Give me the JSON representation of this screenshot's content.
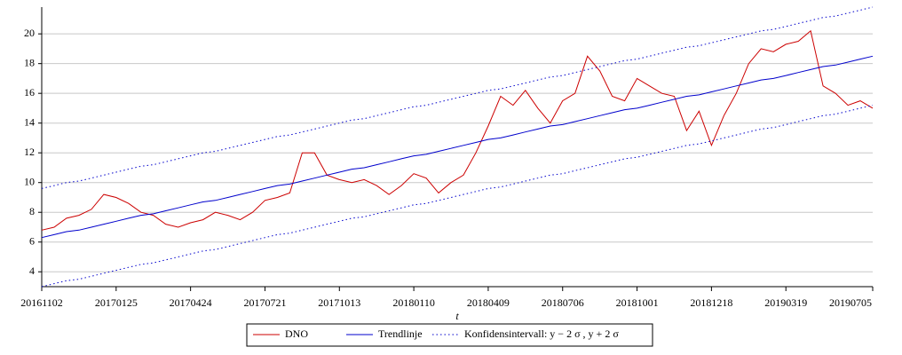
{
  "chart_data": {
    "type": "line",
    "x_label": "t",
    "categories": [
      "20161102",
      null,
      null,
      null,
      null,
      null,
      "20170125",
      null,
      null,
      null,
      null,
      null,
      "20170424",
      null,
      null,
      null,
      null,
      null,
      "20170721",
      null,
      null,
      null,
      null,
      null,
      "20171013",
      null,
      null,
      null,
      null,
      null,
      "20180110",
      null,
      null,
      null,
      null,
      null,
      "20180409",
      null,
      null,
      null,
      null,
      null,
      "20180706",
      null,
      null,
      null,
      null,
      null,
      "20181001",
      null,
      null,
      null,
      null,
      null,
      "20181218",
      null,
      null,
      null,
      null,
      null,
      "20190319",
      null,
      null,
      null,
      null,
      null,
      null,
      "20190705"
    ],
    "series": [
      {
        "name": "DNO",
        "color": "#cc0000",
        "style": "solid",
        "values": [
          6.8,
          7.0,
          7.6,
          7.8,
          8.2,
          9.2,
          9.0,
          8.6,
          8.0,
          7.8,
          7.2,
          7.0,
          7.3,
          7.5,
          8.0,
          7.8,
          7.5,
          8.0,
          8.8,
          9.0,
          9.3,
          12.0,
          12.0,
          10.5,
          10.2,
          10.0,
          10.2,
          9.8,
          9.2,
          9.8,
          10.6,
          10.3,
          9.3,
          10.0,
          10.5,
          12.0,
          13.8,
          15.8,
          15.2,
          16.2,
          15.0,
          14.0,
          15.5,
          16.0,
          18.5,
          17.5,
          15.8,
          15.5,
          17.0,
          16.5,
          16.0,
          15.8,
          13.5,
          14.8,
          12.5,
          14.5,
          16.0,
          18.0,
          19.0,
          18.8,
          19.3,
          19.5,
          20.2,
          16.5,
          16.0,
          15.2,
          15.5,
          15.0
        ]
      },
      {
        "name": "Trendlinje",
        "color": "#0000cc",
        "style": "solid",
        "values": [
          6.3,
          6.5,
          6.7,
          6.8,
          7.0,
          7.2,
          7.4,
          7.6,
          7.8,
          7.9,
          8.1,
          8.3,
          8.5,
          8.7,
          8.8,
          9.0,
          9.2,
          9.4,
          9.6,
          9.8,
          9.9,
          10.1,
          10.3,
          10.5,
          10.7,
          10.9,
          11.0,
          11.2,
          11.4,
          11.6,
          11.8,
          11.9,
          12.1,
          12.3,
          12.5,
          12.7,
          12.9,
          13.0,
          13.2,
          13.4,
          13.6,
          13.8,
          13.9,
          14.1,
          14.3,
          14.5,
          14.7,
          14.9,
          15.0,
          15.2,
          15.4,
          15.6,
          15.8,
          15.9,
          16.1,
          16.3,
          16.5,
          16.7,
          16.9,
          17.0,
          17.2,
          17.4,
          17.6,
          17.8,
          17.9,
          18.1,
          18.3,
          18.5
        ]
      },
      {
        "name": "Konfidensintervall:  y − 2 σ , y + 2 σ",
        "color": "#0000cc",
        "style": "dotted",
        "upper": [
          9.6,
          9.8,
          10.0,
          10.1,
          10.3,
          10.5,
          10.7,
          10.9,
          11.1,
          11.2,
          11.4,
          11.6,
          11.8,
          12.0,
          12.1,
          12.3,
          12.5,
          12.7,
          12.9,
          13.1,
          13.2,
          13.4,
          13.6,
          13.8,
          14.0,
          14.2,
          14.3,
          14.5,
          14.7,
          14.9,
          15.1,
          15.2,
          15.4,
          15.6,
          15.8,
          16.0,
          16.2,
          16.3,
          16.5,
          16.7,
          16.9,
          17.1,
          17.2,
          17.4,
          17.6,
          17.8,
          18.0,
          18.2,
          18.3,
          18.5,
          18.7,
          18.9,
          19.1,
          19.2,
          19.4,
          19.6,
          19.8,
          20.0,
          20.2,
          20.3,
          20.5,
          20.7,
          20.9,
          21.1,
          21.2,
          21.4,
          21.6,
          21.8
        ],
        "lower": [
          3.0,
          3.2,
          3.4,
          3.5,
          3.7,
          3.9,
          4.1,
          4.3,
          4.5,
          4.6,
          4.8,
          5.0,
          5.2,
          5.4,
          5.5,
          5.7,
          5.9,
          6.1,
          6.3,
          6.5,
          6.6,
          6.8,
          7.0,
          7.2,
          7.4,
          7.6,
          7.7,
          7.9,
          8.1,
          8.3,
          8.5,
          8.6,
          8.8,
          9.0,
          9.2,
          9.4,
          9.6,
          9.7,
          9.9,
          10.1,
          10.3,
          10.5,
          10.6,
          10.8,
          11.0,
          11.2,
          11.4,
          11.6,
          11.7,
          11.9,
          12.1,
          12.3,
          12.5,
          12.6,
          12.8,
          13.0,
          13.2,
          13.4,
          13.6,
          13.7,
          13.9,
          14.1,
          14.3,
          14.5,
          14.6,
          14.8,
          15.0,
          15.2
        ]
      }
    ],
    "ylim": [
      3,
      21.8
    ],
    "yticks": [
      4,
      6,
      8,
      10,
      12,
      14,
      16,
      18,
      20
    ],
    "grid": true,
    "legend": "bottom"
  }
}
